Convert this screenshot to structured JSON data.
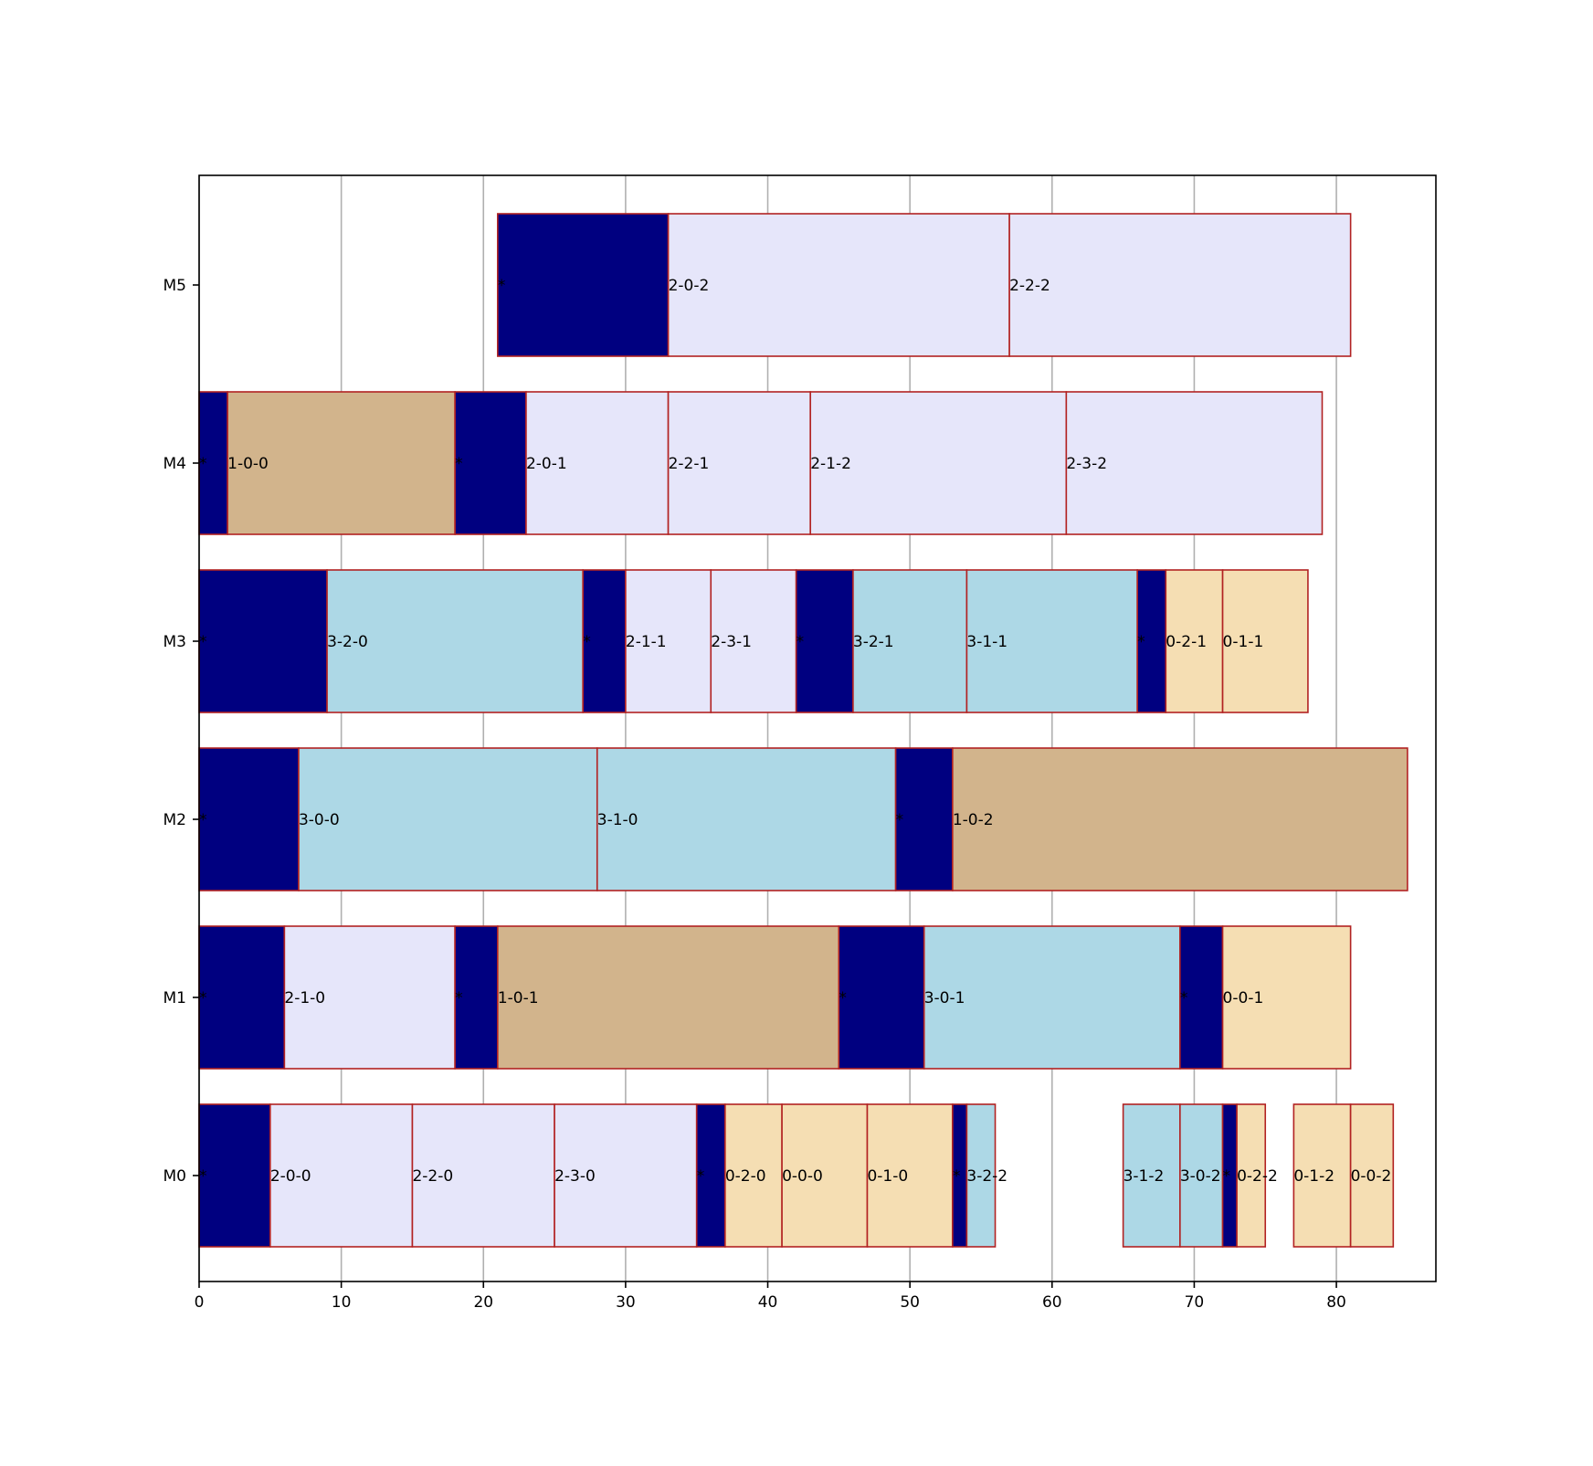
{
  "chart_data": {
    "type": "gantt",
    "title": "",
    "xlabel": "",
    "ylabel": "",
    "xlim": [
      0,
      87
    ],
    "xticks": [
      0,
      10,
      20,
      30,
      40,
      50,
      60,
      70,
      80
    ],
    "xgrid": true,
    "machines": [
      "M0",
      "M1",
      "M2",
      "M3",
      "M4",
      "M5"
    ],
    "colors": {
      "setup": "#000080",
      "job0": "#f5deb3",
      "job1": "#d2b48c",
      "job2": "#e6e6fa",
      "job3": "#add8e6",
      "edge": "#b22222"
    },
    "tasks": [
      {
        "machine": "M0",
        "start": 0,
        "end": 5,
        "kind": "setup",
        "label": "*"
      },
      {
        "machine": "M0",
        "start": 5,
        "end": 15,
        "kind": "job2",
        "label": "2-0-0"
      },
      {
        "machine": "M0",
        "start": 15,
        "end": 25,
        "kind": "job2",
        "label": "2-2-0"
      },
      {
        "machine": "M0",
        "start": 25,
        "end": 35,
        "kind": "job2",
        "label": "2-3-0"
      },
      {
        "machine": "M0",
        "start": 35,
        "end": 37,
        "kind": "setup",
        "label": "*"
      },
      {
        "machine": "M0",
        "start": 37,
        "end": 41,
        "kind": "job0",
        "label": "0-2-0"
      },
      {
        "machine": "M0",
        "start": 41,
        "end": 47,
        "kind": "job0",
        "label": "0-0-0"
      },
      {
        "machine": "M0",
        "start": 47,
        "end": 53,
        "kind": "job0",
        "label": "0-1-0"
      },
      {
        "machine": "M0",
        "start": 53,
        "end": 54,
        "kind": "setup",
        "label": "*"
      },
      {
        "machine": "M0",
        "start": 54,
        "end": 56,
        "kind": "job3",
        "label": "3-2-2"
      },
      {
        "machine": "M0",
        "start": 65,
        "end": 69,
        "kind": "job3",
        "label": "3-1-2"
      },
      {
        "machine": "M0",
        "start": 69,
        "end": 72,
        "kind": "job3",
        "label": "3-0-2"
      },
      {
        "machine": "M0",
        "start": 72,
        "end": 73,
        "kind": "setup",
        "label": "*"
      },
      {
        "machine": "M0",
        "start": 73,
        "end": 75,
        "kind": "job0",
        "label": "0-2-2"
      },
      {
        "machine": "M0",
        "start": 77,
        "end": 81,
        "kind": "job0",
        "label": "0-1-2"
      },
      {
        "machine": "M0",
        "start": 81,
        "end": 84,
        "kind": "job0",
        "label": "0-0-2"
      },
      {
        "machine": "M1",
        "start": 0,
        "end": 6,
        "kind": "setup",
        "label": "*"
      },
      {
        "machine": "M1",
        "start": 6,
        "end": 18,
        "kind": "job2",
        "label": "2-1-0"
      },
      {
        "machine": "M1",
        "start": 18,
        "end": 21,
        "kind": "setup",
        "label": "*"
      },
      {
        "machine": "M1",
        "start": 21,
        "end": 45,
        "kind": "job1",
        "label": "1-0-1"
      },
      {
        "machine": "M1",
        "start": 45,
        "end": 51,
        "kind": "setup",
        "label": "*"
      },
      {
        "machine": "M1",
        "start": 51,
        "end": 69,
        "kind": "job3",
        "label": "3-0-1"
      },
      {
        "machine": "M1",
        "start": 69,
        "end": 72,
        "kind": "setup",
        "label": "*"
      },
      {
        "machine": "M1",
        "start": 72,
        "end": 81,
        "kind": "job0",
        "label": "0-0-1"
      },
      {
        "machine": "M2",
        "start": 0,
        "end": 7,
        "kind": "setup",
        "label": "*"
      },
      {
        "machine": "M2",
        "start": 7,
        "end": 28,
        "kind": "job3",
        "label": "3-0-0"
      },
      {
        "machine": "M2",
        "start": 28,
        "end": 49,
        "kind": "job3",
        "label": "3-1-0"
      },
      {
        "machine": "M2",
        "start": 49,
        "end": 53,
        "kind": "setup",
        "label": "*"
      },
      {
        "machine": "M2",
        "start": 53,
        "end": 85,
        "kind": "job1",
        "label": "1-0-2"
      },
      {
        "machine": "M3",
        "start": 0,
        "end": 9,
        "kind": "setup",
        "label": "*"
      },
      {
        "machine": "M3",
        "start": 9,
        "end": 27,
        "kind": "job3",
        "label": "3-2-0"
      },
      {
        "machine": "M3",
        "start": 27,
        "end": 30,
        "kind": "setup",
        "label": "*"
      },
      {
        "machine": "M3",
        "start": 30,
        "end": 36,
        "kind": "job2",
        "label": "2-1-1"
      },
      {
        "machine": "M3",
        "start": 36,
        "end": 42,
        "kind": "job2",
        "label": "2-3-1"
      },
      {
        "machine": "M3",
        "start": 42,
        "end": 46,
        "kind": "setup",
        "label": "*"
      },
      {
        "machine": "M3",
        "start": 46,
        "end": 54,
        "kind": "job3",
        "label": "3-2-1"
      },
      {
        "machine": "M3",
        "start": 54,
        "end": 66,
        "kind": "job3",
        "label": "3-1-1"
      },
      {
        "machine": "M3",
        "start": 66,
        "end": 68,
        "kind": "setup",
        "label": "*"
      },
      {
        "machine": "M3",
        "start": 68,
        "end": 72,
        "kind": "job0",
        "label": "0-2-1"
      },
      {
        "machine": "M3",
        "start": 72,
        "end": 78,
        "kind": "job0",
        "label": "0-1-1"
      },
      {
        "machine": "M4",
        "start": 0,
        "end": 2,
        "kind": "setup",
        "label": "*"
      },
      {
        "machine": "M4",
        "start": 2,
        "end": 18,
        "kind": "job1",
        "label": "1-0-0"
      },
      {
        "machine": "M4",
        "start": 18,
        "end": 23,
        "kind": "setup",
        "label": "*"
      },
      {
        "machine": "M4",
        "start": 23,
        "end": 33,
        "kind": "job2",
        "label": "2-0-1"
      },
      {
        "machine": "M4",
        "start": 33,
        "end": 43,
        "kind": "job2",
        "label": "2-2-1"
      },
      {
        "machine": "M4",
        "start": 43,
        "end": 61,
        "kind": "job2",
        "label": "2-1-2"
      },
      {
        "machine": "M4",
        "start": 61,
        "end": 79,
        "kind": "job2",
        "label": "2-3-2"
      },
      {
        "machine": "M5",
        "start": 21,
        "end": 33,
        "kind": "setup",
        "label": "*"
      },
      {
        "machine": "M5",
        "start": 33,
        "end": 57,
        "kind": "job2",
        "label": "2-0-2"
      },
      {
        "machine": "M5",
        "start": 57,
        "end": 81,
        "kind": "job2",
        "label": "2-2-2"
      }
    ]
  }
}
